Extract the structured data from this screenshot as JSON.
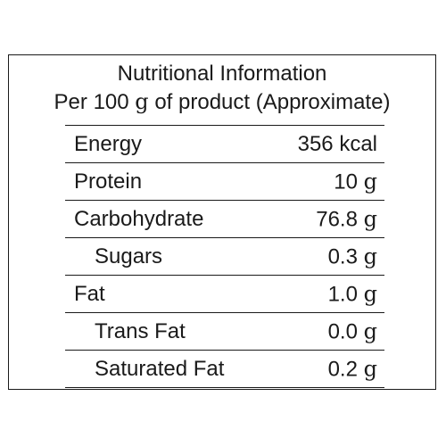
{
  "table": {
    "title_line1": "Nutritional Information",
    "title_line2_prefix": "Per 100 ",
    "title_line2_unit": "g",
    "title_line2_suffix": " of product (Approximate)",
    "rows": [
      {
        "label": "Energy",
        "value": "356 kcal",
        "unit": ""
      },
      {
        "label": "Protein",
        "value": "10",
        "unit": "g"
      },
      {
        "label": "Carbohydrate",
        "value": "76.8",
        "unit": "g"
      },
      {
        "label": "Sugars",
        "value": "0.3",
        "unit": "g"
      },
      {
        "label": "Fat",
        "value": "1.0",
        "unit": "g"
      },
      {
        "label": "Trans Fat",
        "value": "0.0",
        "unit": "g"
      },
      {
        "label": "Saturated Fat",
        "value": "0.2",
        "unit": "g"
      }
    ]
  }
}
